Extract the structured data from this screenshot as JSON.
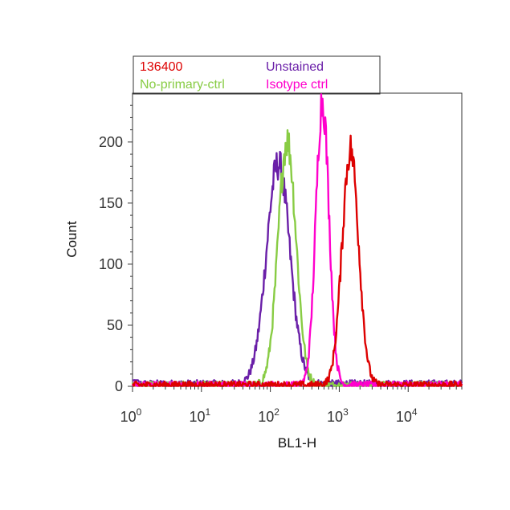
{
  "chart_data": {
    "type": "line",
    "title": "",
    "xlabel": "BL1-H",
    "ylabel": "Count",
    "x_scale": "log",
    "xlim": [
      1,
      60000
    ],
    "ylim": [
      0,
      240
    ],
    "y_ticks": [
      0,
      50,
      100,
      150,
      200
    ],
    "x_ticks": [
      {
        "value": 1,
        "base": "10",
        "exp": "0"
      },
      {
        "value": 10,
        "base": "10",
        "exp": "1"
      },
      {
        "value": 100,
        "base": "10",
        "exp": "2"
      },
      {
        "value": 1000,
        "base": "10",
        "exp": "3"
      },
      {
        "value": 10000,
        "base": "10",
        "exp": "4"
      }
    ],
    "legend_position": "top",
    "series": [
      {
        "name": "Unstained",
        "color": "#6a1fa8",
        "peaks": [
          {
            "x": 130,
            "y": 180,
            "sigma": 0.17
          }
        ],
        "baseline": 2
      },
      {
        "name": "No-primary-ctrl",
        "color": "#88cc44",
        "peaks": [
          {
            "x": 175,
            "y": 200,
            "sigma": 0.13
          }
        ],
        "baseline": 1
      },
      {
        "name": "Isotype ctrl",
        "color": "#ff00cc",
        "peaks": [
          {
            "x": 570,
            "y": 233,
            "sigma": 0.095
          }
        ],
        "baseline": 1
      },
      {
        "name": "136400",
        "color": "#dd0000",
        "peaks": [
          {
            "x": 1450,
            "y": 193,
            "sigma": 0.12
          }
        ],
        "baseline": 1
      }
    ],
    "legend_order": [
      "136400",
      "Unstained",
      "No-primary-ctrl",
      "Isotype ctrl"
    ]
  }
}
